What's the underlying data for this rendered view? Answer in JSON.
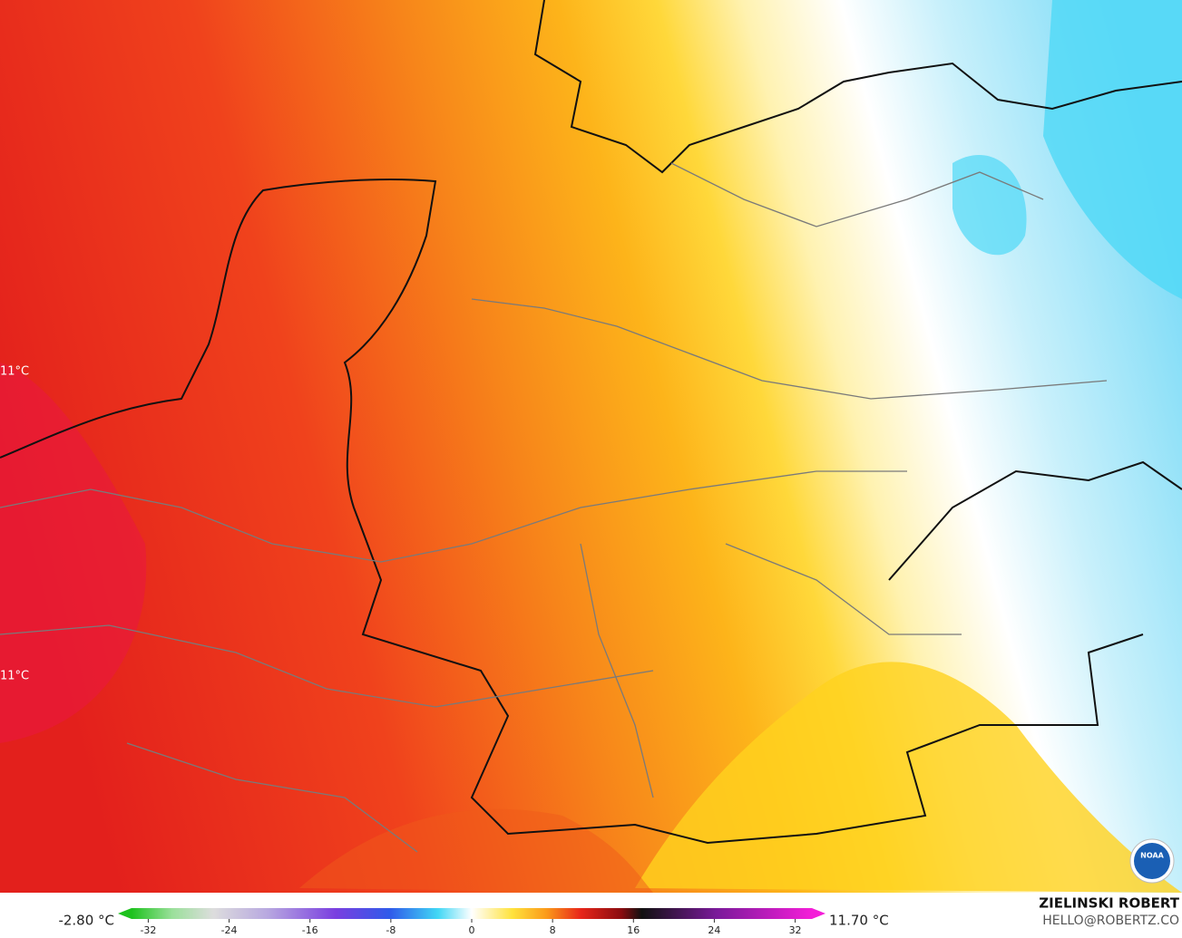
{
  "map": {
    "labels": [
      "11°C",
      "11°C"
    ]
  },
  "legend": {
    "min_label": "-2.80 °C",
    "max_label": "11.70 °C",
    "lim": [
      -35,
      35
    ],
    "ticks": [
      -32,
      -24,
      -16,
      -8,
      0,
      8,
      16,
      24,
      32
    ]
  },
  "credit": {
    "name": "ZIELINSKI ROBERT",
    "email": "HELLO@ROBERTZ.CO",
    "logo": "NOAA"
  }
}
